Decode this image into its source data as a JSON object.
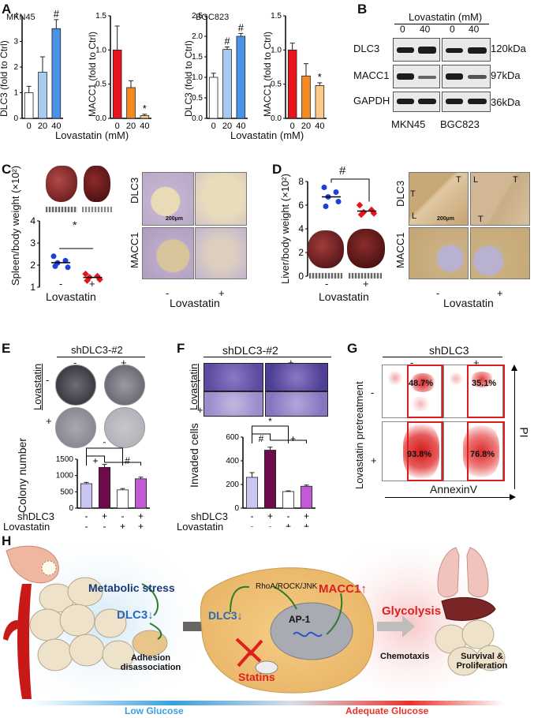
{
  "panel_labels": {
    "A": "A",
    "B": "B",
    "C": "C",
    "D": "D",
    "E": "E",
    "F": "F",
    "G": "G",
    "H": "H"
  },
  "panel_a": {
    "mkn45_label": "MKN45",
    "bgc823_label": "BGC823",
    "xlabel": "Lovastatin (mM)",
    "dlc3_ylabel": "DLC3 (fold to Ctrl)",
    "macc1_ylabel": "MACC1 (fold to Ctrl)"
  },
  "panel_b": {
    "title": "Lovastatin (mM)",
    "doses": [
      "0",
      "40",
      "0",
      "40"
    ],
    "proteins": [
      "DLC3",
      "MACC1",
      "GAPDH"
    ],
    "sizes": [
      "120kDa",
      "97kDa",
      "36kDa"
    ],
    "cells": [
      "MKN45",
      "BGC823"
    ]
  },
  "panel_c": {
    "ylabel": "Spleen/body weight (×10²)",
    "xlabel": "Lovastatin",
    "signs": [
      "-",
      "+"
    ],
    "sig": "*",
    "stain_labels": [
      "DLC3",
      "MACC1"
    ],
    "scale_label": "200µm",
    "ihc_xlabel": "Lovastatin",
    "ticks": [
      "1",
      "2",
      "3",
      "4"
    ]
  },
  "panel_d": {
    "ylabel": "Liver/body weight (×10²)",
    "xlabel": "Lovastatin",
    "signs": [
      "-",
      "+"
    ],
    "sig": "#",
    "stain_labels": [
      "DLC3",
      "MACC1"
    ],
    "scale_label": "200µm",
    "ihc_xlabel": "Lovastatin",
    "ticks": [
      "0",
      "2",
      "4",
      "6",
      "8"
    ],
    "region_labels": [
      "T",
      "L",
      "T",
      "L",
      "T",
      "T"
    ]
  },
  "panel_e": {
    "title": "shDLC3-#2",
    "row_label": "Lovastatin",
    "ylabel": "Colony number",
    "sig": [
      "+",
      "*",
      "#"
    ],
    "row_names": [
      "shDLC3",
      "Lovastatin"
    ]
  },
  "panel_f": {
    "title": "shDLC3-#2",
    "row_label": "Lovastatin",
    "ylabel": "Invaded cells",
    "sig": [
      "#",
      "*",
      "+"
    ],
    "row_names": [
      "shDLC3",
      "Lovastatin"
    ]
  },
  "panel_g": {
    "title": "shDLC3",
    "row_label": "Lovastatin pretreatment",
    "xlabel": "AnnexinV",
    "ylabel": "PI",
    "percents": [
      "48.7%",
      "35.1%",
      "93.8%",
      "76.8%"
    ]
  },
  "panel_h": {
    "metabolic": "Metabolic stress",
    "dlc3_down": "DLC3",
    "adhesion": "Adhesion disassociation",
    "pathway": "RhoA/ROCK/JNK",
    "dlc3_down2": "DLC3",
    "ap1": "AP-1",
    "macc1_up": "MACC1",
    "statins": "Statins",
    "glycolysis": "Glycolysis",
    "chemotaxis": "Chemotaxis",
    "survival": "Survival & Proliferation",
    "low_glucose": "Low Glucose",
    "adequate_glucose": "Adequate Glucose"
  },
  "chart_data": [
    {
      "id": "A-MKN45-DLC3",
      "type": "bar",
      "categories": [
        "0",
        "20",
        "40"
      ],
      "values": [
        1.0,
        1.8,
        3.5
      ],
      "ylim": [
        0,
        4
      ],
      "yticks": [
        "0",
        "1",
        "2",
        "3",
        "4"
      ],
      "colors": [
        "#ffffff",
        "#a8cbf2",
        "#4a92e8"
      ],
      "ylabel": "DLC3 (fold to Ctrl)",
      "annotations": [
        "",
        "",
        "#"
      ]
    },
    {
      "id": "A-MKN45-MACC1",
      "type": "bar",
      "categories": [
        "0",
        "20",
        "40"
      ],
      "values": [
        1.0,
        0.45,
        0.04
      ],
      "ylim": [
        0,
        1.5
      ],
      "yticks": [
        "0.0",
        "0.5",
        "1.0",
        "1.5"
      ],
      "colors": [
        "#e8141c",
        "#f58a1f",
        "#fbc98a"
      ],
      "ylabel": "MACC1 (fold to Ctrl)",
      "annotations": [
        "",
        "",
        "*"
      ]
    },
    {
      "id": "A-BGC823-DLC3",
      "type": "bar",
      "categories": [
        "0",
        "20",
        "40"
      ],
      "values": [
        1.0,
        1.68,
        2.0
      ],
      "ylim": [
        0,
        2.5
      ],
      "yticks": [
        "0.0",
        "0.5",
        "1.0",
        "1.5",
        "2.0",
        "2.5"
      ],
      "colors": [
        "#ffffff",
        "#a8cbf2",
        "#4a92e8"
      ],
      "ylabel": "DLC3 (fold to Ctrl)",
      "annotations": [
        "",
        "#",
        "#"
      ]
    },
    {
      "id": "A-BGC823-MACC1",
      "type": "bar",
      "categories": [
        "0",
        "20",
        "40"
      ],
      "values": [
        1.0,
        0.62,
        0.48
      ],
      "ylim": [
        0,
        1.5
      ],
      "yticks": [
        "0.0",
        "0.5",
        "1.0",
        "1.5"
      ],
      "colors": [
        "#e8141c",
        "#f58a1f",
        "#fbc98a"
      ],
      "ylabel": "MACC1 (fold to Ctrl)",
      "annotations": [
        "",
        "",
        "*"
      ]
    },
    {
      "id": "C-spleen",
      "type": "scatter",
      "groups": [
        "-",
        "+"
      ],
      "values": [
        [
          2.4,
          2.2,
          2.1,
          1.9,
          1.95
        ],
        [
          1.6,
          1.5,
          1.45,
          1.35,
          1.3
        ]
      ],
      "ylim": [
        1,
        4
      ],
      "colors": [
        "#1f3fd6",
        "#e8141c"
      ]
    },
    {
      "id": "D-liver",
      "type": "scatter",
      "groups": [
        "-",
        "+"
      ],
      "values": [
        [
          7.5,
          7.1,
          6.7,
          6.3,
          5.9
        ],
        [
          6.0,
          5.6,
          5.4,
          5.3,
          5.2
        ]
      ],
      "ylim": [
        0,
        8
      ],
      "colors": [
        "#1f3fd6",
        "#e8141c"
      ]
    },
    {
      "id": "E-colony",
      "type": "bar",
      "categories": [
        "shDLC3-/Lov-",
        "shDLC3+/Lov-",
        "shDLC3-/Lov+",
        "shDLC3+/Lov+"
      ],
      "row_values": [
        [
          "-",
          "+",
          "-",
          "+"
        ],
        [
          "-",
          "-",
          "+",
          "+"
        ]
      ],
      "values": [
        750,
        1250,
        560,
        900
      ],
      "ylim": [
        0,
        1500
      ],
      "yticks": [
        "0",
        "500",
        "1000",
        "1500"
      ],
      "colors": [
        "#c9c6f2",
        "#6e0b4c",
        "#ffffff",
        "#c25ad6"
      ]
    },
    {
      "id": "F-invasion",
      "type": "bar",
      "categories": [
        "shDLC3-/Lov-",
        "shDLC3+/Lov-",
        "shDLC3-/Lov+",
        "shDLC3+/Lov+"
      ],
      "row_values": [
        [
          "-",
          "+",
          "-",
          "+"
        ],
        [
          "-",
          "-",
          "+",
          "+"
        ]
      ],
      "values": [
        260,
        490,
        140,
        185
      ],
      "ylim": [
        0,
        600
      ],
      "yticks": [
        "0",
        "200",
        "400",
        "600"
      ],
      "colors": [
        "#c9c6f2",
        "#6e0b4c",
        "#ffffff",
        "#c25ad6"
      ]
    }
  ]
}
